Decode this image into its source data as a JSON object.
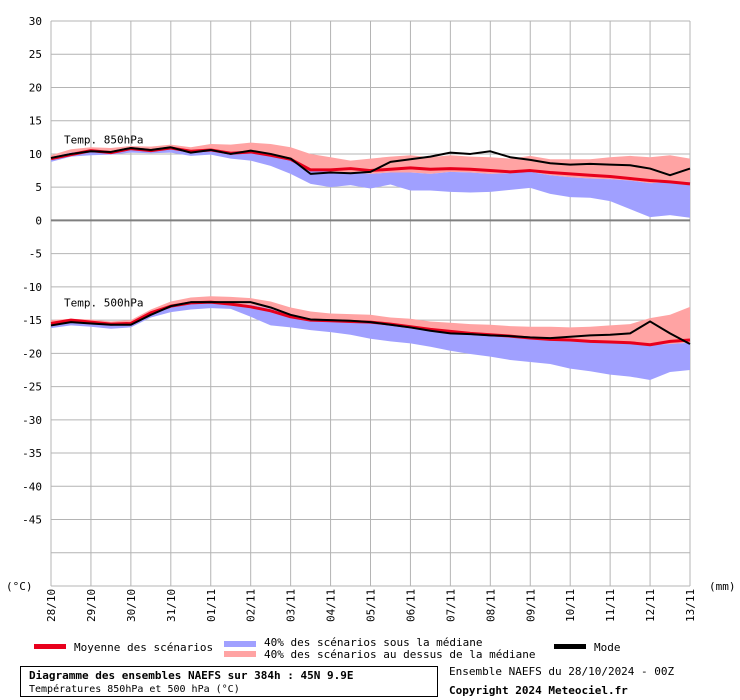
{
  "chart_data": {
    "type": "line",
    "x_dates": [
      "28/10",
      "29/10",
      "30/10",
      "31/10",
      "01/11",
      "02/11",
      "03/11",
      "04/11",
      "05/11",
      "06/11",
      "07/11",
      "08/11",
      "09/11",
      "10/11",
      "11/11",
      "12/11",
      "13/11"
    ],
    "x_range_days": [
      0,
      16
    ],
    "ylim": [
      -55,
      30
    ],
    "yticks": [
      30,
      25,
      20,
      15,
      10,
      5,
      0,
      -5,
      -10,
      -15,
      -20,
      -25,
      -30,
      -35,
      -40,
      -45
    ],
    "y_unit_left": "(°C)",
    "y_unit_right": "(mm)",
    "grid": true,
    "legend_position": "bottom",
    "annotations": [
      {
        "text": "Temp. 850hPa",
        "day": 0.2,
        "value": 12.0
      },
      {
        "text": "Temp. 500hPa",
        "day": 0.2,
        "value": -12.5
      }
    ],
    "legend": [
      {
        "key": "mean",
        "label": "Moyenne des scénarios",
        "color": "#e8001c"
      },
      {
        "key": "below",
        "label": "40% des scénarios sous la médiane",
        "color": "#a0a0ff"
      },
      {
        "key": "above",
        "label": "40% des scénarios au dessus de la médiane",
        "color": "#ffa3a3"
      },
      {
        "key": "mode",
        "label": "Mode",
        "color": "#000000"
      }
    ],
    "series": [
      {
        "level": "850hPa",
        "x": [
          0,
          0.5,
          1,
          1.5,
          2,
          2.5,
          3,
          3.5,
          4,
          4.5,
          5,
          5.5,
          6,
          6.5,
          7,
          7.5,
          8,
          8.5,
          9,
          9.5,
          10,
          10.5,
          11,
          11.5,
          12,
          12.5,
          13,
          13.5,
          14,
          14.5,
          15,
          15.5,
          16
        ],
        "median": [
          9.5,
          10.2,
          10.5,
          10.3,
          10.7,
          10.6,
          10.8,
          10.3,
          10.5,
          10.2,
          10.3,
          9.8,
          9.2,
          7.8,
          7.3,
          7.2,
          7.0,
          7.2,
          7.2,
          7.0,
          7.3,
          7.2,
          7.0,
          7.1,
          7.3,
          6.8,
          6.5,
          6.3,
          6.2,
          6.0,
          5.6,
          5.8,
          5.8
        ],
        "upper": [
          9.8,
          10.7,
          11.0,
          10.9,
          11.2,
          11.1,
          11.4,
          11.0,
          11.5,
          11.4,
          11.7,
          11.5,
          11.0,
          10.0,
          9.5,
          9.0,
          9.3,
          9.6,
          9.8,
          9.5,
          9.8,
          9.6,
          9.5,
          9.3,
          9.7,
          9.2,
          9.2,
          9.2,
          9.5,
          9.7,
          9.5,
          9.8,
          9.3
        ],
        "lower": [
          8.8,
          9.6,
          9.8,
          9.9,
          10.2,
          10.1,
          10.2,
          9.7,
          9.9,
          9.3,
          9.0,
          8.2,
          7.0,
          5.5,
          5.0,
          5.3,
          4.8,
          5.4,
          4.5,
          4.5,
          4.3,
          4.2,
          4.3,
          4.6,
          4.9,
          4.0,
          3.5,
          3.4,
          2.9,
          1.7,
          0.5,
          0.8,
          0.4
        ],
        "mean": [
          9.3,
          9.9,
          10.5,
          10.2,
          10.8,
          10.5,
          10.9,
          10.4,
          10.6,
          10.1,
          10.3,
          9.8,
          9.2,
          7.6,
          7.6,
          7.8,
          7.5,
          7.7,
          7.9,
          7.7,
          7.8,
          7.7,
          7.5,
          7.3,
          7.5,
          7.2,
          7.0,
          6.8,
          6.6,
          6.3,
          6.0,
          5.8,
          5.5
        ],
        "mode": [
          9.4,
          10.0,
          10.4,
          10.3,
          10.9,
          10.6,
          11.0,
          10.2,
          10.6,
          10.0,
          10.5,
          10.0,
          9.3,
          7.0,
          7.2,
          7.1,
          7.3,
          8.8,
          9.2,
          9.6,
          10.2,
          10.0,
          10.4,
          9.5,
          9.1,
          8.6,
          8.4,
          8.5,
          8.4,
          8.3,
          7.8,
          6.8,
          7.8
        ]
      },
      {
        "level": "500hPa",
        "x": [
          0,
          0.5,
          1,
          1.5,
          2,
          2.5,
          3,
          3.5,
          4,
          4.5,
          5,
          5.5,
          6,
          6.5,
          7,
          7.5,
          8,
          8.5,
          9,
          9.5,
          10,
          10.5,
          11,
          11.5,
          12,
          12.5,
          13,
          13.5,
          14,
          14.5,
          15,
          15.5,
          16
        ],
        "median": [
          -15.6,
          -15.2,
          -15.4,
          -15.8,
          -15.6,
          -14.0,
          -13.0,
          -12.6,
          -12.4,
          -12.5,
          -12.7,
          -13.3,
          -14.3,
          -14.9,
          -15.2,
          -15.3,
          -15.4,
          -15.8,
          -16.0,
          -16.4,
          -16.8,
          -17.1,
          -17.3,
          -17.6,
          -17.7,
          -17.9,
          -18.1,
          -18.3,
          -18.4,
          -18.5,
          -18.7,
          -18.6,
          -18.4
        ],
        "upper": [
          -15.0,
          -14.8,
          -14.9,
          -15.2,
          -15.0,
          -13.4,
          -12.2,
          -11.6,
          -11.4,
          -11.5,
          -11.7,
          -12.2,
          -13.1,
          -13.7,
          -14.0,
          -14.1,
          -14.2,
          -14.6,
          -14.8,
          -15.2,
          -15.4,
          -15.6,
          -15.7,
          -15.9,
          -16.0,
          -16.0,
          -16.1,
          -16.0,
          -15.8,
          -15.6,
          -14.7,
          -14.2,
          -13.0
        ],
        "lower": [
          -16.2,
          -15.8,
          -16.0,
          -16.3,
          -16.1,
          -14.6,
          -13.8,
          -13.4,
          -13.2,
          -13.3,
          -14.5,
          -15.8,
          -16.1,
          -16.5,
          -16.8,
          -17.2,
          -17.8,
          -18.2,
          -18.5,
          -19.0,
          -19.6,
          -20.1,
          -20.5,
          -21.0,
          -21.3,
          -21.6,
          -22.3,
          -22.7,
          -23.2,
          -23.5,
          -24.0,
          -22.8,
          -22.5
        ],
        "mean": [
          -15.5,
          -15.0,
          -15.3,
          -15.6,
          -15.5,
          -13.9,
          -12.9,
          -12.4,
          -12.3,
          -12.6,
          -13.0,
          -13.6,
          -14.5,
          -15.0,
          -15.1,
          -15.2,
          -15.3,
          -15.6,
          -16.0,
          -16.4,
          -16.7,
          -17.0,
          -17.2,
          -17.4,
          -17.7,
          -17.9,
          -18.0,
          -18.2,
          -18.3,
          -18.4,
          -18.7,
          -18.2,
          -18.0
        ],
        "mode": [
          -15.8,
          -15.3,
          -15.5,
          -15.7,
          -15.7,
          -14.2,
          -12.9,
          -12.3,
          -12.3,
          -12.3,
          -12.3,
          -13.1,
          -14.2,
          -14.9,
          -15.0,
          -15.1,
          -15.3,
          -15.7,
          -16.1,
          -16.6,
          -17.0,
          -17.1,
          -17.3,
          -17.4,
          -17.6,
          -17.7,
          -17.5,
          -17.3,
          -17.2,
          -17.0,
          -15.2,
          -17.0,
          -18.6
        ]
      }
    ]
  },
  "footer": {
    "title": "Diagramme des ensembles NAEFS sur 384h : 45N 9.9E",
    "subtitle": "Températures 850hPa et 500 hPa (°C)",
    "run": "Ensemble NAEFS du 28/10/2024 - 00Z",
    "copyright": "Copyright 2024 Meteociel.fr"
  },
  "colors": {
    "grid": "#b4b4b4",
    "zero_line": "#7f7f7f"
  }
}
